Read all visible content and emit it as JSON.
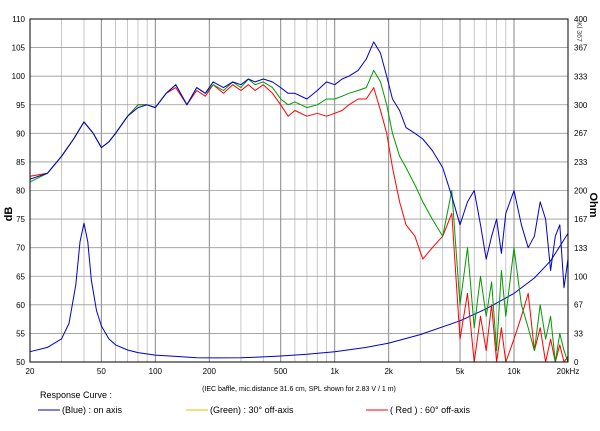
{
  "chart_data": {
    "type": "line",
    "xscale": "log",
    "xlim": [
      20,
      20000
    ],
    "ylim_left": [
      50,
      110
    ],
    "ylim_right": [
      0,
      400
    ],
    "ylabel_left": "dB",
    "ylabel_right": "Ohm",
    "xlabel": "",
    "x_ticks": [
      {
        "v": 20,
        "label": "20"
      },
      {
        "v": 50,
        "label": "50"
      },
      {
        "v": 100,
        "label": "100"
      },
      {
        "v": 200,
        "label": "200"
      },
      {
        "v": 500,
        "label": "500"
      },
      {
        "v": 1000,
        "label": "1k"
      },
      {
        "v": 2000,
        "label": "2k"
      },
      {
        "v": 5000,
        "label": "5k"
      },
      {
        "v": 10000,
        "label": "10k"
      },
      {
        "v": 20000,
        "label": "20kHz"
      }
    ],
    "y_ticks_left": [
      "50",
      "55",
      "60",
      "65",
      "70",
      "75",
      "80",
      "85",
      "90",
      "95",
      "100",
      "105",
      "110"
    ],
    "y_ticks_right": [
      {
        "v": 0,
        "label": "0"
      },
      {
        "v": 33,
        "label": "33"
      },
      {
        "v": 67,
        "label": "67"
      },
      {
        "v": 100,
        "label": "100"
      },
      {
        "v": 133,
        "label": "133"
      },
      {
        "v": 167,
        "label": "167"
      },
      {
        "v": 200,
        "label": "200"
      },
      {
        "v": 233,
        "label": "233"
      },
      {
        "v": 267,
        "label": "267"
      },
      {
        "v": 300,
        "label": "300"
      },
      {
        "v": 333,
        "label": "333"
      },
      {
        "v": 367,
        "label": "367"
      },
      {
        "v": 400,
        "label": "400"
      }
    ],
    "note": "(IEC baffle, mic.distance 31.6 cm, SPL shown for 2.83 V / 1 m)",
    "watermark": "Kl 367",
    "legend_title": "Response Curve :",
    "series": [
      {
        "name": "(Blue)  : on axis",
        "color": "#0000cc",
        "axis": "left",
        "x": [
          20,
          25,
          30,
          35,
          40,
          45,
          50,
          55,
          60,
          70,
          80,
          90,
          100,
          115,
          130,
          150,
          170,
          190,
          210,
          240,
          270,
          300,
          330,
          360,
          400,
          450,
          500,
          550,
          600,
          700,
          800,
          900,
          1000,
          1100,
          1200,
          1350,
          1500,
          1650,
          1800,
          1950,
          2100,
          2300,
          2500,
          2800,
          3100,
          3500,
          4000,
          4500,
          5000,
          5500,
          6000,
          6500,
          7000,
          7500,
          8000,
          8500,
          9000,
          10000,
          11000,
          12000,
          13000,
          14000,
          15000,
          16000,
          17000,
          18000,
          19000,
          20000
        ],
        "y": [
          82,
          83,
          86,
          89,
          92,
          90,
          87.5,
          88.5,
          90,
          93,
          94.5,
          95,
          94.5,
          97,
          98.5,
          95,
          98,
          97,
          99,
          98,
          99,
          98.5,
          99.5,
          99,
          99.5,
          99,
          98,
          97,
          97,
          96,
          97.5,
          99,
          98.5,
          99.5,
          100,
          101,
          103,
          106,
          104,
          100,
          96,
          94,
          91,
          90,
          89,
          87,
          84,
          79,
          74,
          78,
          80,
          74,
          68,
          72,
          75,
          69,
          76,
          80,
          74,
          70,
          72,
          78,
          75,
          66,
          72,
          74,
          63,
          68
        ]
      },
      {
        "name": "(Green) : 30° off-axis",
        "color": "#009900",
        "axis": "left",
        "x": [
          20,
          25,
          30,
          35,
          40,
          45,
          50,
          55,
          60,
          70,
          80,
          90,
          100,
          115,
          130,
          150,
          170,
          190,
          210,
          240,
          270,
          300,
          330,
          360,
          400,
          450,
          500,
          550,
          600,
          700,
          800,
          900,
          1000,
          1100,
          1200,
          1350,
          1500,
          1650,
          1800,
          1950,
          2100,
          2300,
          2500,
          2800,
          3100,
          3500,
          4000,
          4500,
          5000,
          5500,
          6000,
          6500,
          7000,
          7500,
          8000,
          8500,
          9000,
          10000,
          11000,
          12000,
          13000,
          14000,
          15000,
          16000,
          17000,
          18000,
          19000,
          20000
        ],
        "y": [
          81.5,
          83,
          86,
          89,
          92,
          90,
          87.5,
          88.5,
          90,
          93,
          95,
          95,
          94.5,
          97,
          98.5,
          95,
          98,
          97,
          98.5,
          97.5,
          99,
          98,
          99.5,
          98.5,
          99,
          98,
          96,
          95,
          95.5,
          94.5,
          95,
          96,
          96,
          96.5,
          97,
          97.5,
          98,
          101,
          99,
          95,
          90,
          86,
          84,
          81,
          78,
          75,
          72,
          80,
          60,
          70,
          56,
          65,
          58,
          64,
          52,
          66,
          58,
          70,
          60,
          56,
          52,
          60,
          54,
          58,
          50,
          55,
          52,
          50
        ]
      },
      {
        "name": "( Red ) : 60° off-axis",
        "color": "#ff0000",
        "axis": "left",
        "x": [
          20,
          25,
          30,
          35,
          40,
          45,
          50,
          55,
          60,
          70,
          80,
          90,
          100,
          115,
          130,
          150,
          170,
          190,
          210,
          240,
          270,
          300,
          330,
          360,
          400,
          450,
          500,
          550,
          600,
          700,
          800,
          900,
          1000,
          1100,
          1200,
          1350,
          1500,
          1650,
          1800,
          1950,
          2100,
          2300,
          2500,
          2800,
          3100,
          3500,
          4000,
          4500,
          5000,
          5500,
          6000,
          6500,
          7000,
          7500,
          8000,
          8500,
          9000,
          10000,
          11000,
          12000,
          13000,
          14000,
          15000,
          16000,
          17000,
          18000,
          19000,
          20000
        ],
        "y": [
          82.5,
          83,
          86,
          89,
          92,
          90,
          87.5,
          88.5,
          90,
          93,
          95,
          95,
          94.5,
          97,
          98,
          95,
          97.5,
          96.5,
          98.5,
          97,
          98.5,
          97.5,
          98.5,
          97.5,
          98.5,
          97,
          95,
          93,
          94,
          93,
          93.5,
          93,
          93.5,
          94,
          95,
          96,
          96,
          98,
          94,
          90,
          84,
          78,
          74,
          72,
          68,
          70,
          72,
          76,
          54,
          62,
          50,
          58,
          52,
          60,
          50,
          56,
          50,
          54,
          58,
          62,
          52,
          56,
          50,
          54,
          50,
          53,
          50,
          51
        ]
      },
      {
        "name": "Impedance",
        "color": "#0000cc",
        "axis": "right",
        "x": [
          20,
          25,
          30,
          33,
          36,
          38,
          40,
          42,
          44,
          47,
          50,
          55,
          60,
          70,
          80,
          100,
          130,
          170,
          220,
          300,
          400,
          500,
          700,
          1000,
          1500,
          2000,
          3000,
          5000,
          7000,
          10000,
          13000,
          16000,
          20000
        ],
        "y": [
          12,
          17,
          27,
          45,
          90,
          140,
          162,
          140,
          95,
          60,
          42,
          27,
          20,
          14,
          11,
          8,
          6.5,
          5,
          4.8,
          5,
          6,
          7,
          9,
          12,
          17,
          22,
          32,
          48,
          62,
          80,
          98,
          118,
          150
        ]
      }
    ]
  }
}
